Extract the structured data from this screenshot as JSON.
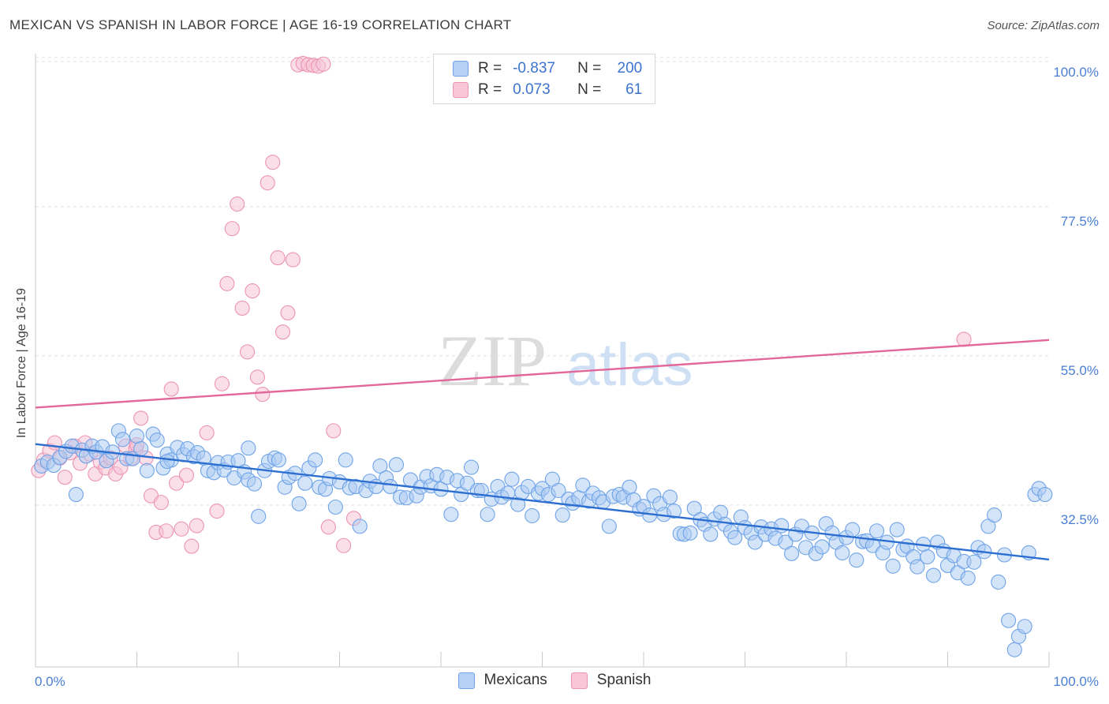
{
  "header": {
    "title": "MEXICAN VS SPANISH IN LABOR FORCE | AGE 16-19 CORRELATION CHART",
    "source": "Source: ZipAtlas.com"
  },
  "colors": {
    "mexicans": "#6ea3e8",
    "mexicans_fill": "#a9c9f2",
    "mexicans_line": "#2d6fd0",
    "spanish": "#ec94b3",
    "spanish_fill": "#f6c3d5",
    "spanish_line": "#e2679a",
    "axis_text": "#4a7fd4"
  },
  "legend": {
    "rows": [
      {
        "r_label": "R =",
        "r_value": "-0.837",
        "n_label": "N =",
        "n_value": "200"
      },
      {
        "r_label": "R =",
        "r_value": "0.073",
        "n_label": "N =",
        "n_value": "61"
      }
    ]
  },
  "bottom_legend": {
    "items": [
      {
        "label": "Mexicans"
      },
      {
        "label": "Spanish"
      }
    ]
  },
  "chart_data": {
    "type": "scatter",
    "title": "MEXICAN VS SPANISH IN LABOR FORCE | AGE 16-19 CORRELATION CHART",
    "xlabel": "",
    "ylabel": "In Labor Force | Age 16-19",
    "xlim": [
      0,
      100
    ],
    "ylim": [
      10,
      102
    ],
    "x_tick_labels": [
      "0.0%",
      "100.0%"
    ],
    "y_ticks": [
      32.5,
      55.0,
      77.5,
      100.0
    ],
    "y_tick_labels": [
      "32.5%",
      "55.0%",
      "77.5%",
      "100.0%"
    ],
    "grid": true,
    "legend_position": "top-center",
    "series": [
      {
        "name": "Mexicans",
        "R": -0.837,
        "N": 200,
        "trend": {
          "x": [
            0,
            100
          ],
          "y": [
            43.6,
            26.2
          ]
        },
        "points": [
          [
            0.6,
            40.3
          ],
          [
            1.2,
            40.9
          ],
          [
            1.8,
            40.4
          ],
          [
            2.4,
            41.6
          ],
          [
            3.0,
            42.5
          ],
          [
            3.6,
            43.3
          ],
          [
            4.0,
            36.0
          ],
          [
            4.6,
            42.7
          ],
          [
            5.0,
            41.8
          ],
          [
            5.6,
            43.3
          ],
          [
            6.0,
            42.4
          ],
          [
            6.6,
            43.2
          ],
          [
            7.0,
            41.1
          ],
          [
            7.6,
            42.4
          ],
          [
            8.2,
            45.6
          ],
          [
            8.6,
            44.3
          ],
          [
            9.0,
            41.4
          ],
          [
            9.6,
            41.4
          ],
          [
            10.0,
            44.8
          ],
          [
            10.4,
            42.9
          ],
          [
            11.0,
            39.6
          ],
          [
            11.6,
            45.1
          ],
          [
            12.0,
            44.2
          ],
          [
            12.6,
            40.0
          ],
          [
            13.0,
            42.1
          ],
          [
            13.4,
            41.2
          ],
          [
            14.0,
            43.1
          ],
          [
            14.6,
            42.0
          ],
          [
            15.0,
            42.9
          ],
          [
            15.6,
            41.7
          ],
          [
            16.0,
            42.3
          ],
          [
            16.6,
            41.5
          ],
          [
            17.0,
            39.6
          ],
          [
            17.6,
            39.3
          ],
          [
            18.0,
            40.8
          ],
          [
            18.6,
            39.7
          ],
          [
            19.0,
            40.9
          ],
          [
            19.6,
            38.5
          ],
          [
            20.0,
            41.1
          ],
          [
            20.6,
            39.4
          ],
          [
            21.0,
            38.2
          ],
          [
            21.6,
            37.6
          ],
          [
            22.0,
            32.7
          ],
          [
            22.6,
            39.6
          ],
          [
            23.0,
            41.0
          ],
          [
            23.6,
            41.5
          ],
          [
            24.0,
            41.2
          ],
          [
            24.6,
            37.1
          ],
          [
            25.0,
            38.6
          ],
          [
            25.6,
            39.2
          ],
          [
            26.0,
            34.6
          ],
          [
            26.6,
            37.7
          ],
          [
            27.0,
            40.0
          ],
          [
            27.6,
            41.2
          ],
          [
            28.0,
            37.1
          ],
          [
            28.6,
            36.8
          ],
          [
            29.0,
            38.4
          ],
          [
            29.6,
            34.1
          ],
          [
            30.0,
            37.9
          ],
          [
            30.6,
            41.2
          ],
          [
            31.0,
            37.0
          ],
          [
            31.6,
            37.2
          ],
          [
            32.0,
            31.2
          ],
          [
            32.6,
            36.6
          ],
          [
            33.0,
            38.0
          ],
          [
            33.6,
            37.2
          ],
          [
            34.0,
            40.3
          ],
          [
            34.6,
            38.5
          ],
          [
            35.0,
            37.2
          ],
          [
            35.6,
            40.5
          ],
          [
            36.0,
            35.6
          ],
          [
            36.6,
            35.5
          ],
          [
            37.0,
            38.2
          ],
          [
            37.6,
            35.8
          ],
          [
            38.0,
            37.1
          ],
          [
            38.6,
            38.7
          ],
          [
            39.0,
            37.3
          ],
          [
            39.6,
            39.0
          ],
          [
            40.0,
            36.8
          ],
          [
            40.6,
            38.6
          ],
          [
            41.0,
            33.0
          ],
          [
            41.6,
            38.1
          ],
          [
            42.0,
            36.0
          ],
          [
            42.6,
            37.7
          ],
          [
            43.0,
            40.1
          ],
          [
            43.6,
            36.6
          ],
          [
            44.0,
            36.6
          ],
          [
            44.6,
            33.0
          ],
          [
            45.0,
            35.3
          ],
          [
            45.6,
            37.2
          ],
          [
            46.0,
            35.6
          ],
          [
            46.6,
            36.2
          ],
          [
            47.0,
            38.3
          ],
          [
            47.6,
            34.5
          ],
          [
            48.0,
            36.3
          ],
          [
            48.6,
            37.2
          ],
          [
            49.0,
            32.8
          ],
          [
            49.6,
            36.2
          ],
          [
            50.0,
            36.9
          ],
          [
            50.6,
            36.0
          ],
          [
            51.0,
            38.3
          ],
          [
            51.6,
            36.6
          ],
          [
            52.0,
            32.9
          ],
          [
            52.6,
            35.3
          ],
          [
            53.0,
            34.7
          ],
          [
            53.6,
            35.5
          ],
          [
            54.0,
            37.4
          ],
          [
            54.6,
            35.0
          ],
          [
            55.0,
            36.2
          ],
          [
            55.6,
            35.5
          ],
          [
            56.0,
            34.9
          ],
          [
            56.6,
            31.2
          ],
          [
            57.0,
            35.7
          ],
          [
            57.6,
            36.0
          ],
          [
            58.0,
            35.6
          ],
          [
            58.6,
            37.1
          ],
          [
            59.0,
            35.2
          ],
          [
            59.6,
            33.8
          ],
          [
            60.0,
            34.2
          ],
          [
            60.6,
            32.9
          ],
          [
            61.0,
            35.8
          ],
          [
            61.6,
            34.6
          ],
          [
            62.0,
            33.0
          ],
          [
            62.6,
            35.6
          ],
          [
            63.0,
            33.5
          ],
          [
            63.6,
            30.1
          ],
          [
            64.0,
            30.0
          ],
          [
            64.6,
            30.2
          ],
          [
            65.0,
            33.9
          ],
          [
            65.6,
            32.2
          ],
          [
            66.0,
            31.5
          ],
          [
            66.6,
            30.0
          ],
          [
            67.0,
            32.3
          ],
          [
            67.6,
            33.3
          ],
          [
            68.0,
            31.5
          ],
          [
            68.6,
            30.4
          ],
          [
            69.0,
            29.5
          ],
          [
            69.6,
            32.6
          ],
          [
            70.0,
            31.0
          ],
          [
            70.6,
            30.2
          ],
          [
            71.0,
            28.8
          ],
          [
            71.6,
            31.1
          ],
          [
            72.0,
            30.0
          ],
          [
            72.6,
            30.8
          ],
          [
            73.0,
            29.4
          ],
          [
            73.6,
            31.3
          ],
          [
            74.0,
            28.8
          ],
          [
            74.6,
            27.1
          ],
          [
            75.0,
            30.0
          ],
          [
            75.6,
            31.2
          ],
          [
            76.0,
            28.0
          ],
          [
            76.6,
            30.2
          ],
          [
            77.0,
            27.1
          ],
          [
            77.6,
            28.1
          ],
          [
            78.0,
            31.6
          ],
          [
            78.6,
            30.2
          ],
          [
            79.0,
            28.8
          ],
          [
            79.6,
            27.2
          ],
          [
            80.0,
            29.5
          ],
          [
            80.6,
            30.7
          ],
          [
            81.0,
            26.1
          ],
          [
            81.6,
            28.9
          ],
          [
            82.0,
            29.0
          ],
          [
            82.6,
            28.3
          ],
          [
            83.0,
            30.5
          ],
          [
            83.6,
            27.2
          ],
          [
            84.0,
            28.8
          ],
          [
            84.6,
            25.2
          ],
          [
            85.0,
            30.7
          ],
          [
            85.6,
            27.7
          ],
          [
            86.0,
            28.2
          ],
          [
            86.6,
            26.6
          ],
          [
            87.0,
            25.1
          ],
          [
            87.6,
            28.5
          ],
          [
            88.0,
            26.6
          ],
          [
            88.6,
            23.8
          ],
          [
            89.0,
            28.8
          ],
          [
            89.6,
            27.5
          ],
          [
            90.0,
            25.3
          ],
          [
            90.6,
            26.8
          ],
          [
            91.0,
            24.2
          ],
          [
            91.6,
            25.9
          ],
          [
            92.0,
            23.4
          ],
          [
            92.6,
            25.8
          ],
          [
            93.0,
            28.0
          ],
          [
            93.6,
            27.4
          ],
          [
            94.0,
            31.2
          ],
          [
            94.6,
            32.9
          ],
          [
            95.0,
            22.8
          ],
          [
            95.6,
            26.9
          ],
          [
            96.0,
            17.0
          ],
          [
            96.6,
            12.6
          ],
          [
            97.0,
            14.6
          ],
          [
            97.6,
            16.1
          ],
          [
            98.0,
            27.2
          ],
          [
            98.6,
            36.0
          ],
          [
            99.0,
            36.9
          ],
          [
            99.6,
            36.0
          ],
          [
            13.0,
            41.0
          ],
          [
            21.0,
            43.0
          ]
        ]
      },
      {
        "name": "Spanish",
        "R": 0.073,
        "N": 61,
        "trend": {
          "x": [
            0,
            100
          ],
          "y": [
            49.1,
            59.3
          ]
        },
        "points": [
          [
            0.3,
            39.6
          ],
          [
            0.8,
            41.2
          ],
          [
            1.4,
            42.6
          ],
          [
            1.9,
            43.8
          ],
          [
            2.4,
            41.5
          ],
          [
            2.9,
            38.6
          ],
          [
            3.4,
            42.3
          ],
          [
            3.9,
            43.3
          ],
          [
            4.4,
            40.7
          ],
          [
            4.9,
            43.8
          ],
          [
            5.4,
            42.1
          ],
          [
            5.9,
            39.1
          ],
          [
            6.4,
            40.9
          ],
          [
            6.9,
            40.0
          ],
          [
            7.4,
            41.5
          ],
          [
            7.9,
            39.1
          ],
          [
            8.4,
            40.1
          ],
          [
            8.9,
            43.3
          ],
          [
            9.4,
            41.4
          ],
          [
            9.9,
            42.9
          ],
          [
            10.0,
            43.5
          ],
          [
            10.4,
            47.5
          ],
          [
            10.9,
            41.5
          ],
          [
            11.4,
            35.8
          ],
          [
            11.9,
            30.3
          ],
          [
            12.4,
            34.8
          ],
          [
            12.9,
            30.5
          ],
          [
            13.4,
            51.9
          ],
          [
            13.9,
            37.7
          ],
          [
            14.4,
            30.8
          ],
          [
            14.9,
            38.9
          ],
          [
            15.4,
            28.2
          ],
          [
            15.9,
            31.3
          ],
          [
            16.9,
            45.3
          ],
          [
            17.9,
            33.5
          ],
          [
            18.4,
            52.7
          ],
          [
            18.9,
            67.8
          ],
          [
            19.4,
            76.1
          ],
          [
            19.9,
            79.8
          ],
          [
            20.4,
            64.1
          ],
          [
            20.9,
            57.5
          ],
          [
            21.4,
            66.7
          ],
          [
            21.9,
            53.7
          ],
          [
            22.4,
            51.1
          ],
          [
            22.9,
            83.0
          ],
          [
            23.4,
            86.1
          ],
          [
            23.9,
            71.7
          ],
          [
            24.4,
            60.5
          ],
          [
            24.9,
            63.4
          ],
          [
            25.4,
            71.4
          ],
          [
            25.9,
            100.8
          ],
          [
            26.4,
            101.0
          ],
          [
            26.9,
            100.8
          ],
          [
            27.4,
            100.7
          ],
          [
            27.9,
            100.6
          ],
          [
            28.4,
            100.9
          ],
          [
            28.9,
            31.1
          ],
          [
            29.4,
            45.6
          ],
          [
            30.4,
            28.3
          ],
          [
            31.4,
            32.4
          ],
          [
            91.6,
            59.4
          ]
        ]
      }
    ]
  }
}
